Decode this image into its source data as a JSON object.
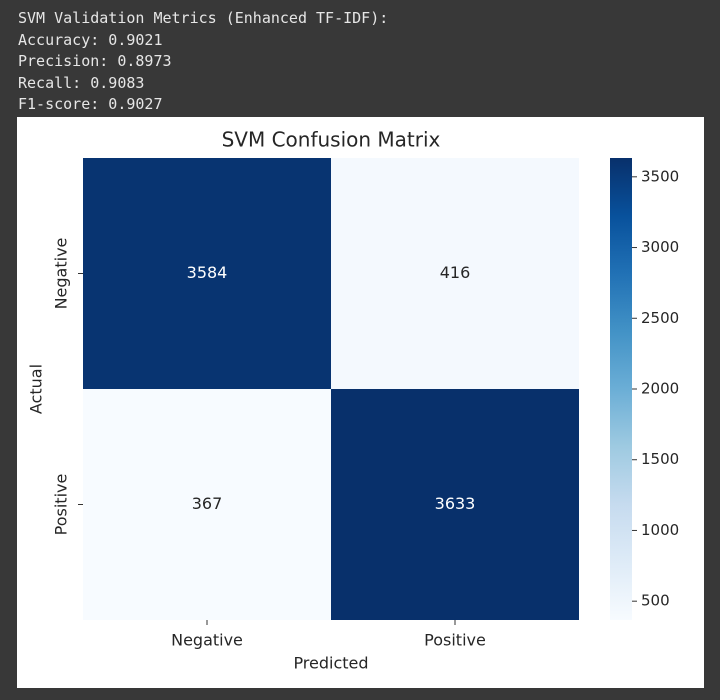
{
  "output": [
    "SVM Validation Metrics (Enhanced TF-IDF):",
    "Accuracy: 0.9021",
    "Precision: 0.8973",
    "Recall: 0.9083",
    "F1-score: 0.9027"
  ],
  "chart_data": {
    "type": "heatmap",
    "title": "SVM Confusion Matrix",
    "xlabel": "Predicted",
    "ylabel": "Actual",
    "x_categories": [
      "Negative",
      "Positive"
    ],
    "y_categories": [
      "Negative",
      "Positive"
    ],
    "values": [
      [
        3584,
        416
      ],
      [
        367,
        3633
      ]
    ],
    "colormap": "Blues",
    "clim": [
      367,
      3633
    ],
    "cticks": [
      500,
      1000,
      1500,
      2000,
      2500,
      3000,
      3500
    ]
  }
}
